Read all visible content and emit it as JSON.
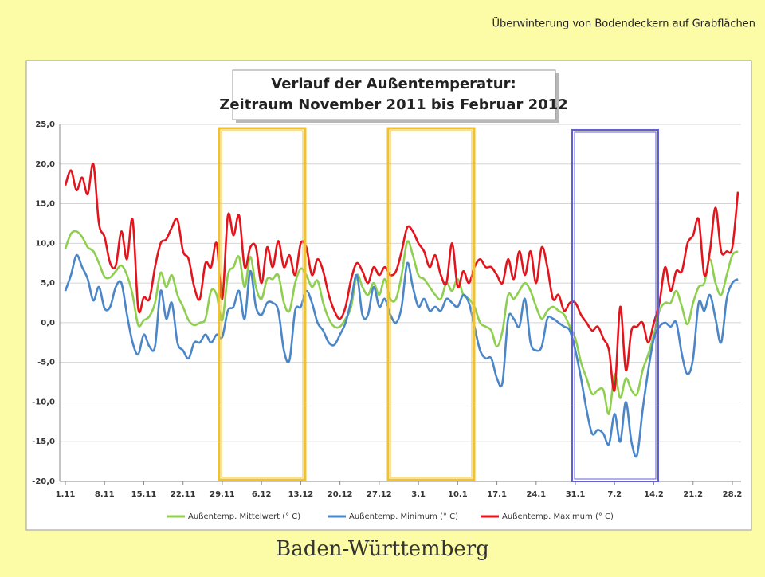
{
  "header": "Überwinterung von Bodendeckern auf Grabflächen",
  "footer": "Baden-Württemberg",
  "chart_data": {
    "type": "line",
    "title": "Verlauf der Außentemperatur:",
    "subtitle": "Zeitraum November 2011 bis Februar 2012",
    "categories": [
      "1.11",
      null,
      null,
      null,
      null,
      null,
      null,
      "8.11",
      null,
      null,
      null,
      null,
      null,
      null,
      "15.11",
      null,
      null,
      null,
      null,
      null,
      null,
      "22.11",
      null,
      null,
      null,
      null,
      null,
      null,
      "29.11",
      null,
      null,
      null,
      null,
      null,
      null,
      "6.12",
      null,
      null,
      null,
      null,
      null,
      null,
      "13.12",
      null,
      null,
      null,
      null,
      null,
      null,
      "20.12",
      null,
      null,
      null,
      null,
      null,
      null,
      "27.12",
      null,
      null,
      null,
      null,
      null,
      null,
      "3.1",
      null,
      null,
      null,
      null,
      null,
      null,
      "10.1",
      null,
      null,
      null,
      null,
      null,
      null,
      "17.1",
      null,
      null,
      null,
      null,
      null,
      null,
      "24.1",
      null,
      null,
      null,
      null,
      null,
      null,
      "31.1",
      null,
      null,
      null,
      null,
      null,
      null,
      "7.2",
      null,
      null,
      null,
      null,
      null,
      null,
      "14.2",
      null,
      null,
      null,
      null,
      null,
      null,
      "21.2",
      null,
      null,
      null,
      null,
      null,
      null,
      "28.2",
      null
    ],
    "series": [
      {
        "name": "Außentemp. Mittelwert (° C)",
        "color": "#8fcf4f",
        "values": [
          9.3,
          11.2,
          11.5,
          10.8,
          9.5,
          9.0,
          7.5,
          5.8,
          5.7,
          6.5,
          7.2,
          6.0,
          3.5,
          -0.3,
          0.3,
          0.8,
          2.5,
          6.3,
          4.5,
          6.0,
          3.5,
          2.0,
          0.3,
          -0.3,
          0.0,
          0.5,
          4.0,
          3.5,
          0.3,
          6.0,
          7.0,
          8.3,
          4.5,
          8.3,
          4.5,
          3.0,
          5.5,
          5.5,
          6.0,
          2.5,
          1.5,
          5.0,
          6.8,
          6.0,
          4.5,
          5.3,
          2.5,
          0.5,
          -0.5,
          -0.5,
          0.5,
          2.0,
          6.0,
          4.5,
          3.5,
          5.0,
          3.5,
          5.5,
          3.0,
          3.0,
          6.0,
          10.2,
          8.5,
          6.0,
          5.5,
          4.5,
          3.5,
          3.0,
          5.0,
          4.0,
          5.5,
          3.5,
          3.0,
          2.0,
          0.0,
          -0.5,
          -1.0,
          -3.0,
          -1.0,
          3.5,
          3.0,
          4.0,
          5.0,
          4.0,
          2.0,
          0.5,
          1.5,
          2.0,
          1.5,
          1.0,
          -0.5,
          -2.0,
          -5.0,
          -7.0,
          -9.0,
          -8.5,
          -8.5,
          -11.5,
          -6.5,
          -9.5,
          -7.0,
          -8.5,
          -9.0,
          -6.0,
          -4.0,
          -1.5,
          1.5,
          2.5,
          2.5,
          4.0,
          2.0,
          -0.2,
          2.5,
          4.5,
          5.0,
          8.0,
          5.0,
          3.5,
          6.0,
          8.5,
          9.0
        ]
      },
      {
        "name": "Außentemp. Minimum (° C)",
        "color": "#4a86c8",
        "values": [
          4.0,
          6.0,
          8.5,
          7.0,
          5.5,
          2.8,
          4.5,
          1.8,
          2.0,
          4.5,
          5.0,
          1.0,
          -2.5,
          -4.0,
          -1.5,
          -3.0,
          -3.0,
          4.0,
          0.5,
          2.5,
          -2.5,
          -3.5,
          -4.5,
          -2.5,
          -2.5,
          -1.5,
          -2.5,
          -1.5,
          -1.8,
          1.5,
          2.0,
          4.0,
          0.5,
          6.5,
          2.0,
          1.0,
          2.5,
          2.5,
          1.5,
          -3.5,
          -4.7,
          1.5,
          2.0,
          4.0,
          2.5,
          0.0,
          -1.0,
          -2.5,
          -2.8,
          -1.5,
          0.0,
          2.8,
          6.0,
          1.0,
          1.0,
          4.5,
          2.0,
          3.0,
          1.0,
          0.0,
          2.0,
          7.5,
          4.5,
          2.0,
          3.0,
          1.5,
          2.0,
          1.5,
          3.0,
          2.5,
          2.0,
          3.5,
          2.5,
          -0.5,
          -3.5,
          -4.5,
          -4.5,
          -7.0,
          -7.5,
          0.5,
          0.5,
          -0.5,
          3.0,
          -2.5,
          -3.5,
          -3.0,
          0.5,
          0.5,
          0.0,
          -0.5,
          -1.0,
          -3.5,
          -7.0,
          -11.0,
          -14.0,
          -13.5,
          -14.0,
          -15.3,
          -11.5,
          -15.0,
          -10.0,
          -15.0,
          -16.7,
          -11.0,
          -6.0,
          -2.0,
          -0.5,
          0.0,
          -0.5,
          0.0,
          -4.0,
          -6.5,
          -4.5,
          2.5,
          1.5,
          3.5,
          0.5,
          -2.5,
          3.0,
          5.0,
          5.5
        ]
      },
      {
        "name": "Außentemp. Maximum (° C)",
        "color": "#e3141b",
        "values": [
          17.3,
          19.2,
          16.7,
          18.3,
          16.2,
          20.0,
          12.5,
          10.8,
          7.5,
          7.2,
          11.5,
          8.0,
          13.0,
          1.8,
          3.2,
          3.0,
          7.0,
          10.0,
          10.5,
          12.0,
          13.0,
          9.0,
          8.0,
          4.5,
          3.0,
          7.5,
          7.0,
          10.0,
          3.0,
          13.5,
          11.0,
          13.5,
          7.0,
          9.5,
          9.5,
          5.0,
          9.5,
          7.0,
          10.3,
          7.0,
          8.5,
          6.0,
          10.0,
          9.5,
          6.0,
          8.0,
          6.5,
          3.5,
          1.5,
          0.5,
          2.0,
          5.5,
          7.5,
          6.5,
          5.0,
          7.0,
          6.0,
          7.0,
          6.0,
          6.5,
          9.0,
          12.0,
          11.5,
          10.0,
          9.0,
          7.0,
          8.5,
          6.0,
          5.0,
          10.0,
          4.5,
          6.5,
          5.0,
          7.0,
          8.0,
          7.0,
          7.0,
          6.0,
          5.0,
          8.0,
          5.5,
          9.0,
          6.0,
          9.0,
          5.0,
          9.5,
          7.0,
          3.0,
          3.5,
          1.5,
          2.5,
          2.5,
          1.0,
          0.0,
          -1.0,
          -0.5,
          -2.0,
          -3.5,
          -8.5,
          2.0,
          -6.0,
          -1.0,
          -0.5,
          0.0,
          -2.5,
          0.0,
          2.5,
          7.0,
          4.0,
          6.5,
          6.5,
          10.0,
          11.0,
          13.0,
          6.0,
          9.0,
          14.5,
          9.0,
          9.0,
          9.5,
          16.5
        ]
      }
    ],
    "ylim": [
      -20,
      25
    ],
    "yticks": [
      {
        "value": -20,
        "label": "-20,0"
      },
      {
        "value": -15,
        "label": "-15,0"
      },
      {
        "value": -10,
        "label": "-10,0"
      },
      {
        "value": -5,
        "label": "-5,0"
      },
      {
        "value": 0,
        "label": "0,0"
      },
      {
        "value": 5,
        "label": "5,0"
      },
      {
        "value": 10,
        "label": "10,0"
      },
      {
        "value": 15,
        "label": "15,0"
      },
      {
        "value": 20,
        "label": "20,0"
      },
      {
        "value": 25,
        "label": "25,0"
      }
    ],
    "grid": true,
    "legend": "bottom"
  }
}
